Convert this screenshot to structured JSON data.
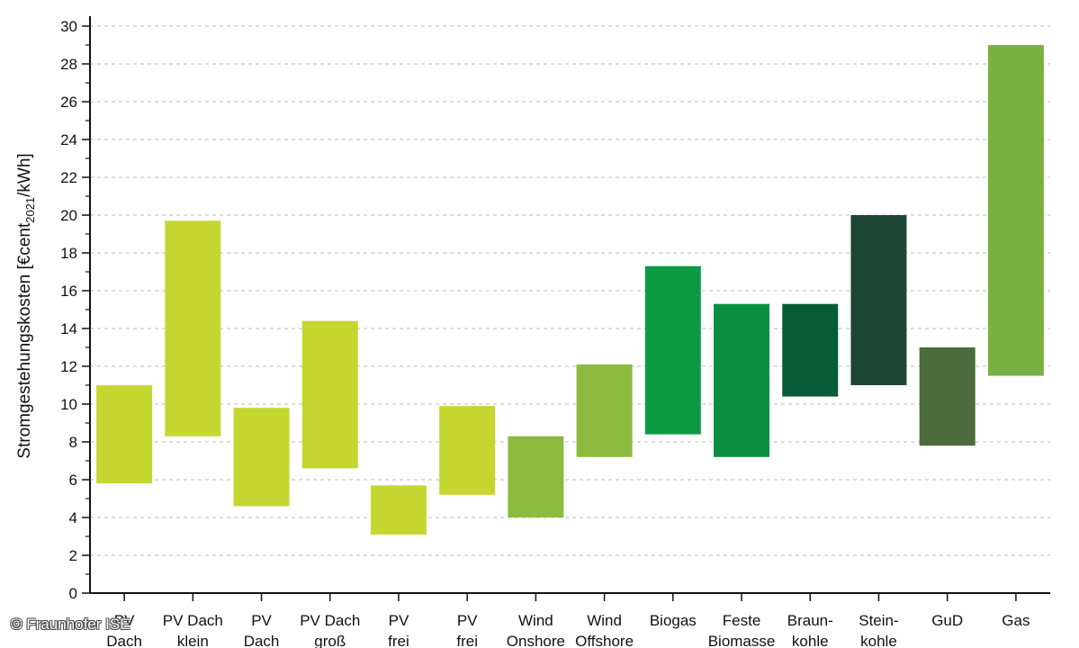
{
  "chart_data": {
    "type": "bar",
    "subtype": "floating-range",
    "ylabel": {
      "main": "Stromgestehungskosten [€cent",
      "subscript": "2021",
      "suffix": "/kWh]"
    },
    "ylim": [
      0,
      30
    ],
    "yticks": [
      0,
      2,
      4,
      6,
      8,
      10,
      12,
      14,
      16,
      18,
      20,
      22,
      24,
      26,
      28,
      30
    ],
    "grid": "horizontal-dashed",
    "categories": [
      [
        "PV",
        "Dach"
      ],
      [
        "PV Dach",
        "klein"
      ],
      [
        "PV",
        "Dach"
      ],
      [
        "PV Dach",
        "groß"
      ],
      [
        "PV",
        "frei"
      ],
      [
        "PV",
        "frei"
      ],
      [
        "Wind",
        "Onshore"
      ],
      [
        "Wind",
        "Offshore"
      ],
      [
        "Biogas"
      ],
      [
        "Feste",
        "Biomasse"
      ],
      [
        "Braun-",
        "kohle"
      ],
      [
        "Stein-",
        "kohle"
      ],
      [
        "GuD"
      ],
      [
        "Gas"
      ]
    ],
    "ranges": [
      [
        5.8,
        11.0
      ],
      [
        8.3,
        19.7
      ],
      [
        4.6,
        9.8
      ],
      [
        6.6,
        14.4
      ],
      [
        3.1,
        5.7
      ],
      [
        5.2,
        9.9
      ],
      [
        4.0,
        8.3
      ],
      [
        7.2,
        12.1
      ],
      [
        8.4,
        17.3
      ],
      [
        7.2,
        15.3
      ],
      [
        10.4,
        15.3
      ],
      [
        11.0,
        20.0
      ],
      [
        7.8,
        13.0
      ],
      [
        11.5,
        29.0
      ]
    ],
    "colors": [
      "#c6d631",
      "#c6d631",
      "#c6d631",
      "#c6d631",
      "#c6d631",
      "#c6d631",
      "#8dbb40",
      "#8dbb40",
      "#0c9a43",
      "#0a8f42",
      "#065c38",
      "#1f4534",
      "#4d6b3c",
      "#7ab040"
    ]
  },
  "copyright": "© Fraunhofer ISE"
}
